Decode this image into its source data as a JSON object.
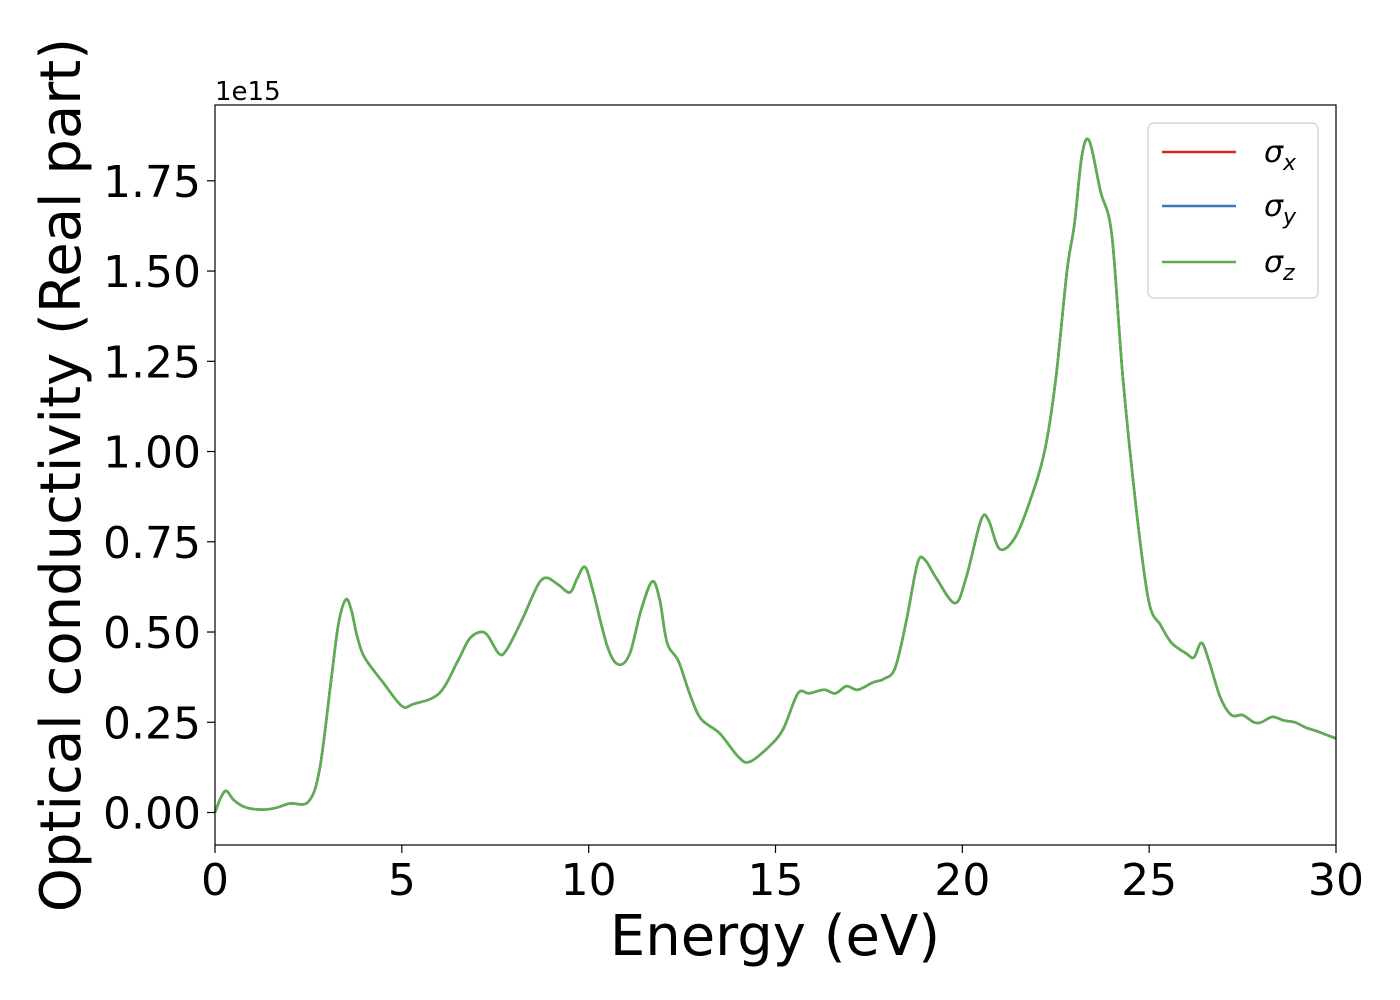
{
  "chart_data": {
    "type": "line",
    "xlabel": "Energy (eV)",
    "ylabel": "Optical conductivity (Real part)",
    "y_offset_label": "1e15",
    "xlim": [
      0,
      30
    ],
    "ylim": [
      -0.09,
      1.96
    ],
    "x_ticks": [
      0,
      5,
      10,
      15,
      20,
      25,
      30
    ],
    "x_tick_labels": [
      "0",
      "5",
      "10",
      "15",
      "20",
      "25",
      "30"
    ],
    "y_ticks": [
      0.0,
      0.25,
      0.5,
      0.75,
      1.0,
      1.25,
      1.5,
      1.75
    ],
    "y_tick_labels": [
      "0.00",
      "0.25",
      "0.50",
      "0.75",
      "1.00",
      "1.25",
      "1.50",
      "1.75"
    ],
    "grid": false,
    "legend_position": "top-right",
    "x": [
      0,
      0.15,
      0.3,
      0.5,
      0.8,
      1.2,
      1.6,
      2.0,
      2.5,
      2.8,
      3.1,
      3.3,
      3.5,
      3.65,
      3.8,
      4.0,
      4.5,
      5.0,
      5.3,
      6.0,
      6.5,
      6.8,
      7.1,
      7.3,
      7.6,
      7.8,
      8.2,
      8.5,
      8.7,
      8.9,
      9.2,
      9.5,
      9.7,
      9.9,
      10.1,
      10.5,
      10.8,
      11.1,
      11.4,
      11.7,
      11.9,
      12.1,
      12.4,
      12.7,
      13.0,
      13.5,
      14.0,
      14.3,
      14.8,
      15.2,
      15.6,
      15.9,
      16.3,
      16.6,
      16.9,
      17.2,
      17.6,
      17.9,
      18.2,
      18.5,
      18.8,
      19.0,
      19.3,
      19.8,
      20.1,
      20.5,
      20.7,
      21.0,
      21.4,
      21.8,
      22.2,
      22.5,
      22.8,
      23.0,
      23.2,
      23.4,
      23.7,
      24.0,
      24.3,
      24.7,
      25.0,
      25.3,
      25.6,
      26.0,
      26.2,
      26.4,
      26.6,
      26.9,
      27.2,
      27.5,
      27.8,
      28.0,
      28.3,
      28.6,
      28.9,
      29.2,
      29.5,
      30.0
    ],
    "series": [
      {
        "name": "σx",
        "color": "#d62728",
        "values": [
          0.0,
          0.04,
          0.06,
          0.035,
          0.015,
          0.008,
          0.012,
          0.025,
          0.03,
          0.12,
          0.36,
          0.52,
          0.59,
          0.56,
          0.49,
          0.43,
          0.36,
          0.295,
          0.3,
          0.33,
          0.42,
          0.48,
          0.5,
          0.49,
          0.44,
          0.45,
          0.53,
          0.6,
          0.64,
          0.65,
          0.63,
          0.61,
          0.65,
          0.68,
          0.62,
          0.46,
          0.41,
          0.44,
          0.56,
          0.64,
          0.59,
          0.47,
          0.42,
          0.33,
          0.26,
          0.22,
          0.155,
          0.14,
          0.18,
          0.23,
          0.33,
          0.33,
          0.34,
          0.33,
          0.35,
          0.34,
          0.36,
          0.37,
          0.4,
          0.53,
          0.69,
          0.7,
          0.65,
          0.58,
          0.65,
          0.81,
          0.81,
          0.73,
          0.76,
          0.86,
          1.0,
          1.2,
          1.5,
          1.63,
          1.82,
          1.86,
          1.72,
          1.6,
          1.2,
          0.8,
          0.58,
          0.52,
          0.47,
          0.44,
          0.43,
          0.47,
          0.42,
          0.32,
          0.27,
          0.27,
          0.25,
          0.25,
          0.265,
          0.255,
          0.25,
          0.235,
          0.225,
          0.205
        ]
      },
      {
        "name": "σy",
        "color": "#3a7ab5",
        "values": [
          0.0,
          0.04,
          0.06,
          0.035,
          0.015,
          0.008,
          0.012,
          0.025,
          0.03,
          0.12,
          0.36,
          0.52,
          0.59,
          0.56,
          0.49,
          0.43,
          0.36,
          0.295,
          0.3,
          0.33,
          0.42,
          0.48,
          0.5,
          0.49,
          0.44,
          0.45,
          0.53,
          0.6,
          0.64,
          0.65,
          0.63,
          0.61,
          0.65,
          0.68,
          0.62,
          0.46,
          0.41,
          0.44,
          0.56,
          0.64,
          0.59,
          0.47,
          0.42,
          0.33,
          0.26,
          0.22,
          0.155,
          0.14,
          0.18,
          0.23,
          0.33,
          0.33,
          0.34,
          0.33,
          0.35,
          0.34,
          0.36,
          0.37,
          0.4,
          0.53,
          0.69,
          0.7,
          0.65,
          0.58,
          0.65,
          0.81,
          0.81,
          0.73,
          0.76,
          0.86,
          1.0,
          1.2,
          1.5,
          1.63,
          1.82,
          1.86,
          1.72,
          1.6,
          1.2,
          0.8,
          0.58,
          0.52,
          0.47,
          0.44,
          0.43,
          0.47,
          0.42,
          0.32,
          0.27,
          0.27,
          0.25,
          0.25,
          0.265,
          0.255,
          0.25,
          0.235,
          0.225,
          0.205
        ]
      },
      {
        "name": "σz",
        "color": "#5bb04d",
        "values": [
          0.0,
          0.04,
          0.06,
          0.035,
          0.015,
          0.008,
          0.012,
          0.025,
          0.03,
          0.12,
          0.36,
          0.52,
          0.59,
          0.56,
          0.49,
          0.43,
          0.36,
          0.295,
          0.3,
          0.33,
          0.42,
          0.48,
          0.5,
          0.49,
          0.44,
          0.45,
          0.53,
          0.6,
          0.64,
          0.65,
          0.63,
          0.61,
          0.65,
          0.68,
          0.62,
          0.46,
          0.41,
          0.44,
          0.56,
          0.64,
          0.59,
          0.47,
          0.42,
          0.33,
          0.26,
          0.22,
          0.155,
          0.14,
          0.18,
          0.23,
          0.33,
          0.33,
          0.34,
          0.33,
          0.35,
          0.34,
          0.36,
          0.37,
          0.4,
          0.53,
          0.69,
          0.7,
          0.65,
          0.58,
          0.65,
          0.81,
          0.81,
          0.73,
          0.76,
          0.86,
          1.0,
          1.2,
          1.5,
          1.63,
          1.82,
          1.86,
          1.72,
          1.6,
          1.2,
          0.8,
          0.58,
          0.52,
          0.47,
          0.44,
          0.43,
          0.47,
          0.42,
          0.32,
          0.27,
          0.27,
          0.25,
          0.25,
          0.265,
          0.255,
          0.25,
          0.235,
          0.225,
          0.205
        ]
      }
    ],
    "legend": [
      {
        "symbol": "σ",
        "subscript": "x",
        "color": "#d62728"
      },
      {
        "symbol": "σ",
        "subscript": "y",
        "color": "#3a7ab5"
      },
      {
        "symbol": "σ",
        "subscript": "z",
        "color": "#5bb04d"
      }
    ]
  }
}
